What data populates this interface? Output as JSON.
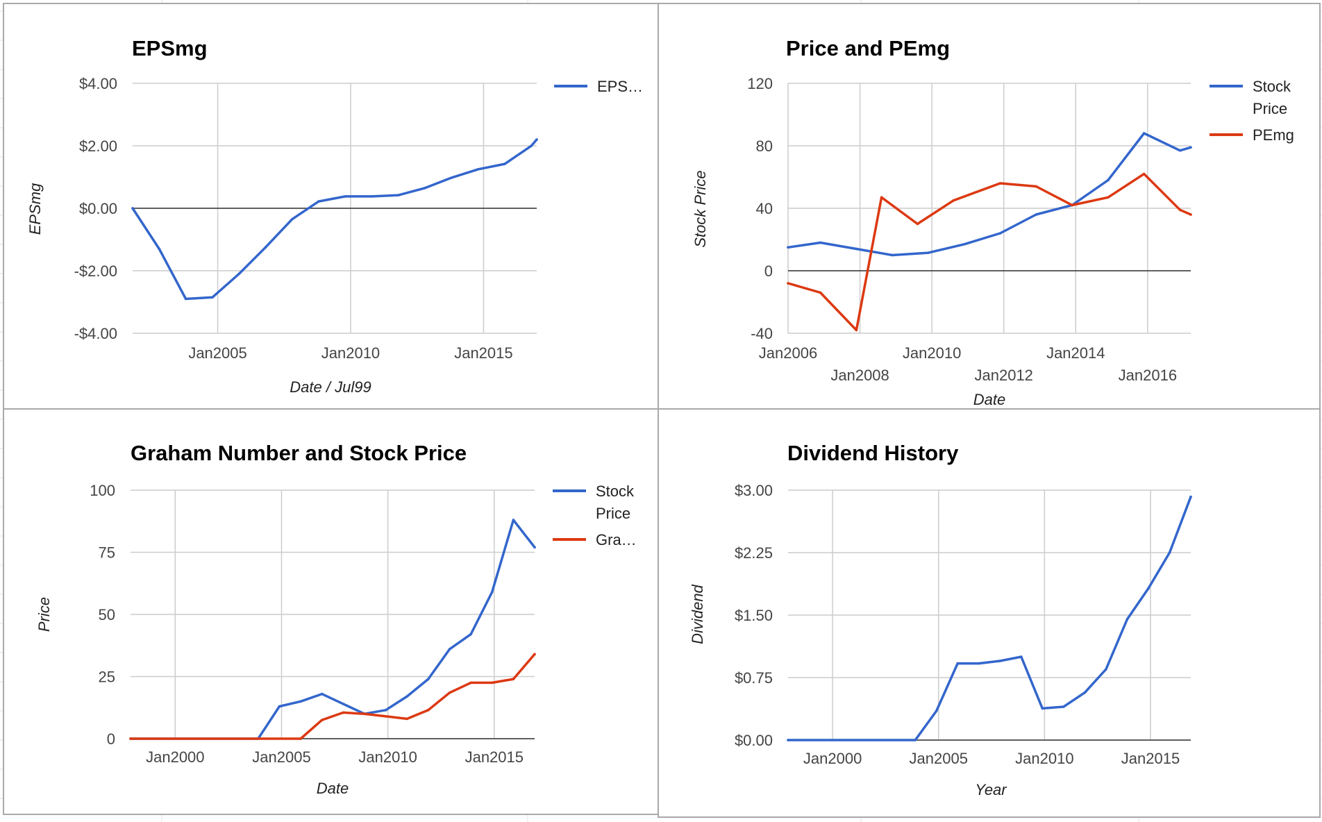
{
  "chart_data": [
    {
      "id": "eps",
      "type": "line",
      "title": "EPSmg",
      "xlabel": "Date / Jul99",
      "ylabel": "EPSmg",
      "xlim": [
        2001.8,
        2017.0
      ],
      "ylim": [
        -4,
        4
      ],
      "yticks": [
        4,
        2,
        0,
        -2,
        -4
      ],
      "ytick_labels": [
        "$4.00",
        "$2.00",
        "$0.00",
        "-$2.00",
        "-$4.00"
      ],
      "xticks": [
        2005,
        2010,
        2015
      ],
      "xtick_labels": [
        "Jan2005",
        "Jan2010",
        "Jan2015"
      ],
      "grid": true,
      "legend_position": "right",
      "series": [
        {
          "name": "EPS…",
          "color": "#3366cc",
          "x": [
            2001.8,
            2002.8,
            2003.8,
            2004.8,
            2005.8,
            2006.8,
            2007.8,
            2008.8,
            2009.8,
            2010.8,
            2011.8,
            2012.8,
            2013.8,
            2014.8,
            2015.8,
            2016.8,
            2017.0
          ],
          "y": [
            0.0,
            -1.3,
            -2.9,
            -2.85,
            -2.1,
            -1.25,
            -0.35,
            0.22,
            0.38,
            0.38,
            0.42,
            0.65,
            0.98,
            1.25,
            1.42,
            2.0,
            2.2
          ]
        }
      ]
    },
    {
      "id": "pe",
      "type": "line",
      "title": "Price and PEmg",
      "xlabel": "Date",
      "ylabel": "Stock Price",
      "xlim": [
        2006.0,
        2017.2
      ],
      "ylim": [
        -40,
        120
      ],
      "yticks": [
        120,
        80,
        40,
        0,
        -40
      ],
      "ytick_labels": [
        "120",
        "80",
        "40",
        "0",
        "-40"
      ],
      "xticks": [
        2006,
        2008,
        2010,
        2012,
        2014,
        2016
      ],
      "xtick_labels": [
        "Jan2006",
        "Jan2008",
        "Jan2010",
        "Jan2012",
        "Jan2014",
        "Jan2016"
      ],
      "grid": true,
      "legend_position": "right",
      "series": [
        {
          "name": "Stock Price",
          "color": "#3366cc",
          "x": [
            2006.0,
            2006.9,
            2007.9,
            2008.9,
            2009.9,
            2010.9,
            2011.9,
            2012.9,
            2013.9,
            2014.9,
            2015.9,
            2016.9,
            2017.2
          ],
          "y": [
            15,
            18,
            14,
            10,
            11.5,
            17,
            24,
            36,
            42,
            58,
            88,
            77,
            79
          ]
        },
        {
          "name": "PEmg",
          "color": "#dc3912",
          "x": [
            2006.0,
            2006.9,
            2007.9,
            2008.6,
            2009.6,
            2010.6,
            2011.9,
            2012.9,
            2013.9,
            2014.9,
            2015.9,
            2016.9,
            2017.2
          ],
          "y": [
            -8,
            -14,
            -38,
            47,
            30,
            45,
            56,
            54,
            42,
            47,
            62,
            39,
            36
          ]
        }
      ]
    },
    {
      "id": "graham",
      "type": "line",
      "title": "Graham Number and Stock Price",
      "xlabel": "Date",
      "ylabel": "Price",
      "xlim": [
        1997.9,
        2016.9
      ],
      "ylim": [
        0,
        100
      ],
      "yticks": [
        100,
        75,
        50,
        25,
        0
      ],
      "ytick_labels": [
        "100",
        "75",
        "50",
        "25",
        "0"
      ],
      "xticks": [
        2000,
        2005,
        2010,
        2015
      ],
      "xtick_labels": [
        "Jan2000",
        "Jan2005",
        "Jan2010",
        "Jan2015"
      ],
      "grid": true,
      "legend_position": "right",
      "series": [
        {
          "name": "Stock Price",
          "color": "#3366cc",
          "x": [
            1997.9,
            2003.9,
            2004.9,
            2005.9,
            2006.9,
            2007.9,
            2008.9,
            2009.9,
            2010.9,
            2011.9,
            2012.9,
            2013.9,
            2014.9,
            2015.9,
            2016.9
          ],
          "y": [
            0,
            0,
            13,
            15,
            18,
            14,
            10,
            11.5,
            17,
            24,
            36,
            42,
            59,
            88,
            77
          ]
        },
        {
          "name": "Gra…",
          "color": "#dc3912",
          "x": [
            1997.9,
            2005.9,
            2006.9,
            2007.9,
            2008.9,
            2009.9,
            2010.9,
            2011.9,
            2012.9,
            2013.9,
            2014.9,
            2015.9,
            2016.9
          ],
          "y": [
            0,
            0,
            7.5,
            10.5,
            10,
            9,
            8,
            11.5,
            18.5,
            22.5,
            22.5,
            24,
            34
          ]
        }
      ]
    },
    {
      "id": "div",
      "type": "line",
      "title": "Dividend History",
      "xlabel": "Year",
      "ylabel": "Dividend",
      "xlim": [
        1997.9,
        2016.9
      ],
      "ylim": [
        0,
        3
      ],
      "yticks": [
        3,
        2.25,
        1.5,
        0.75,
        0
      ],
      "ytick_labels": [
        "$3.00",
        "$2.25",
        "$1.50",
        "$0.75",
        "$0.00"
      ],
      "xticks": [
        2000,
        2005,
        2010,
        2015
      ],
      "xtick_labels": [
        "Jan2000",
        "Jan2005",
        "Jan2010",
        "Jan2015"
      ],
      "grid": true,
      "legend_position": "none",
      "series": [
        {
          "name": "",
          "color": "#3366cc",
          "x": [
            1997.9,
            2003.9,
            2004.9,
            2005.9,
            2006.9,
            2007.9,
            2008.9,
            2009.9,
            2010.9,
            2011.9,
            2012.9,
            2013.9,
            2014.9,
            2015.9,
            2016.9
          ],
          "y": [
            0,
            0,
            0.35,
            0.92,
            0.92,
            0.95,
            1.0,
            0.38,
            0.4,
            0.57,
            0.85,
            1.45,
            1.82,
            2.25,
            2.92
          ]
        }
      ]
    }
  ]
}
